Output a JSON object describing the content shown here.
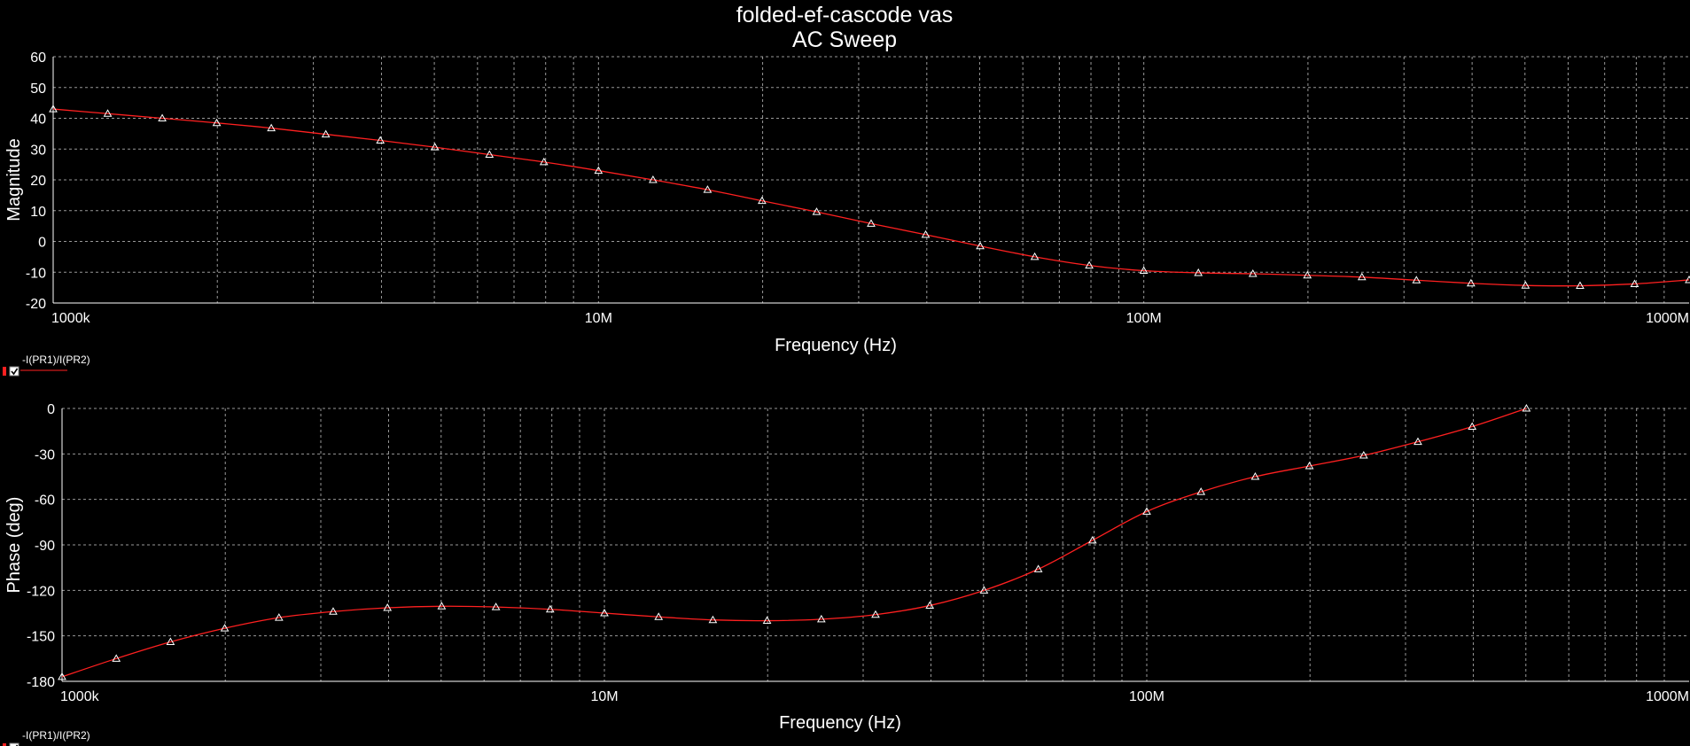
{
  "title": "folded-ef-cascode vas",
  "subtitle": "AC Sweep",
  "colors": {
    "background": "#000000",
    "trace": "#ff2020",
    "grid": "#bfbfbf",
    "marker": "#ffffff",
    "text": "#ffffff"
  },
  "chart_data": [
    {
      "type": "line",
      "xscale": "log",
      "xlabel": "Frequency (Hz)",
      "ylabel": "Magnitude",
      "xlim": [
        1000000,
        1000000000
      ],
      "ylim": [
        -20,
        60
      ],
      "grid": true,
      "x_tick_labels": [
        {
          "value": 1000000,
          "label": "1000k"
        },
        {
          "value": 10000000,
          "label": "10M"
        },
        {
          "value": 100000000,
          "label": "100M"
        },
        {
          "value": 1000000000,
          "label": "1000M"
        }
      ],
      "y_ticks": [
        60,
        50,
        40,
        30,
        20,
        10,
        0,
        -10,
        -20
      ],
      "legend": "-I(PR1)/I(PR2)",
      "series": [
        {
          "name": "-I(PR1)/I(PR2)",
          "x": [
            1000000,
            1259000,
            1585000,
            1995000,
            2512000,
            3162000,
            3981000,
            5012000,
            6310000,
            7943000,
            10000000,
            12590000,
            15850000,
            19950000,
            25120000,
            31620000,
            39810000,
            50120000,
            63100000,
            79430000,
            100000000,
            125900000,
            158500000,
            199500000,
            251200000,
            316200000,
            398100000,
            501200000,
            631000000,
            794300000,
            1000000000
          ],
          "y": [
            43,
            41.5,
            40,
            38.5,
            36.8,
            34.8,
            32.8,
            30.6,
            28.2,
            25.8,
            23,
            20,
            16.8,
            13.2,
            9.6,
            5.8,
            2.2,
            -1.5,
            -5,
            -7.8,
            -9.5,
            -10.2,
            -10.5,
            -11,
            -11.6,
            -12.6,
            -13.6,
            -14.3,
            -14.4,
            -13.8,
            -12.5
          ]
        }
      ]
    },
    {
      "type": "line",
      "xscale": "log",
      "xlabel": "Frequency (Hz)",
      "ylabel": "Phase (deg)",
      "xlim": [
        1000000,
        1000000000
      ],
      "ylim": [
        -180,
        0
      ],
      "grid": true,
      "x_tick_labels": [
        {
          "value": 1000000,
          "label": "1000k"
        },
        {
          "value": 10000000,
          "label": "10M"
        },
        {
          "value": 100000000,
          "label": "100M"
        },
        {
          "value": 1000000000,
          "label": "1000M"
        }
      ],
      "y_ticks": [
        0,
        -30,
        -60,
        -90,
        -120,
        -150,
        -180
      ],
      "legend": "-I(PR1)/I(PR2)",
      "series": [
        {
          "name": "-I(PR1)/I(PR2)",
          "x": [
            1000000,
            1259000,
            1585000,
            1995000,
            2512000,
            3162000,
            3981000,
            5012000,
            6310000,
            7943000,
            10000000,
            12590000,
            15850000,
            19950000,
            25120000,
            31620000,
            39810000,
            50120000,
            63100000,
            79430000,
            100000000,
            125900000,
            158500000,
            199500000,
            251200000,
            316200000,
            398100000,
            501200000
          ],
          "y": [
            -177,
            -165,
            -154,
            -145,
            -138,
            -134,
            -131.5,
            -130.5,
            -131,
            -132.5,
            -135,
            -137.5,
            -139.5,
            -140,
            -139,
            -136,
            -130,
            -120,
            -106,
            -87,
            -68,
            -55,
            -45,
            -38,
            -31,
            -22,
            -12,
            0
          ]
        }
      ]
    }
  ]
}
